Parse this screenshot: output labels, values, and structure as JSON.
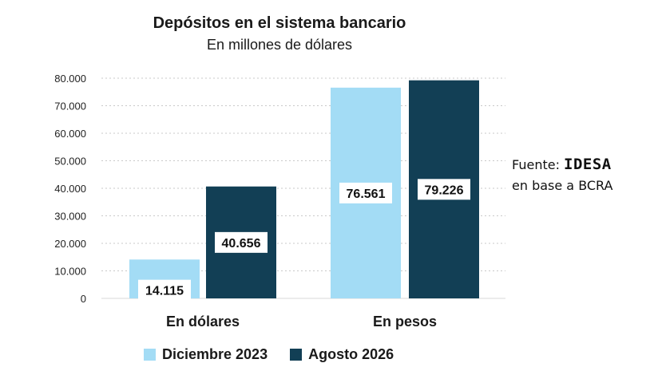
{
  "chart_data": {
    "type": "bar",
    "title": "Depósitos en el sistema bancario",
    "subtitle": "En millones de dólares",
    "categories": [
      "En dólares",
      "En pesos"
    ],
    "series": [
      {
        "name": "Diciembre 2023",
        "values": [
          14115,
          76561
        ],
        "labels": [
          "14.115",
          "76.561"
        ],
        "color": "#a3dcf5"
      },
      {
        "name": "Agosto 2026",
        "values": [
          40656,
          79226
        ],
        "labels": [
          "40.656",
          "79.226"
        ],
        "color": "#123f55"
      }
    ],
    "yticks": [
      {
        "value": 0,
        "label": "0"
      },
      {
        "value": 10000,
        "label": "10.000"
      },
      {
        "value": 20000,
        "label": "20.000"
      },
      {
        "value": 30000,
        "label": "30.000"
      },
      {
        "value": 40000,
        "label": "40.000"
      },
      {
        "value": 50000,
        "label": "50.000"
      },
      {
        "value": 60000,
        "label": "60.000"
      },
      {
        "value": 70000,
        "label": "70.000"
      },
      {
        "value": 80000,
        "label": "80.000"
      }
    ],
    "ylim": [
      0,
      80000
    ],
    "grid": true,
    "legend_position": "bottom"
  },
  "source": {
    "prefix": "Fuente: ",
    "brand": "IDESA",
    "suffix": "en base a BCRA"
  }
}
